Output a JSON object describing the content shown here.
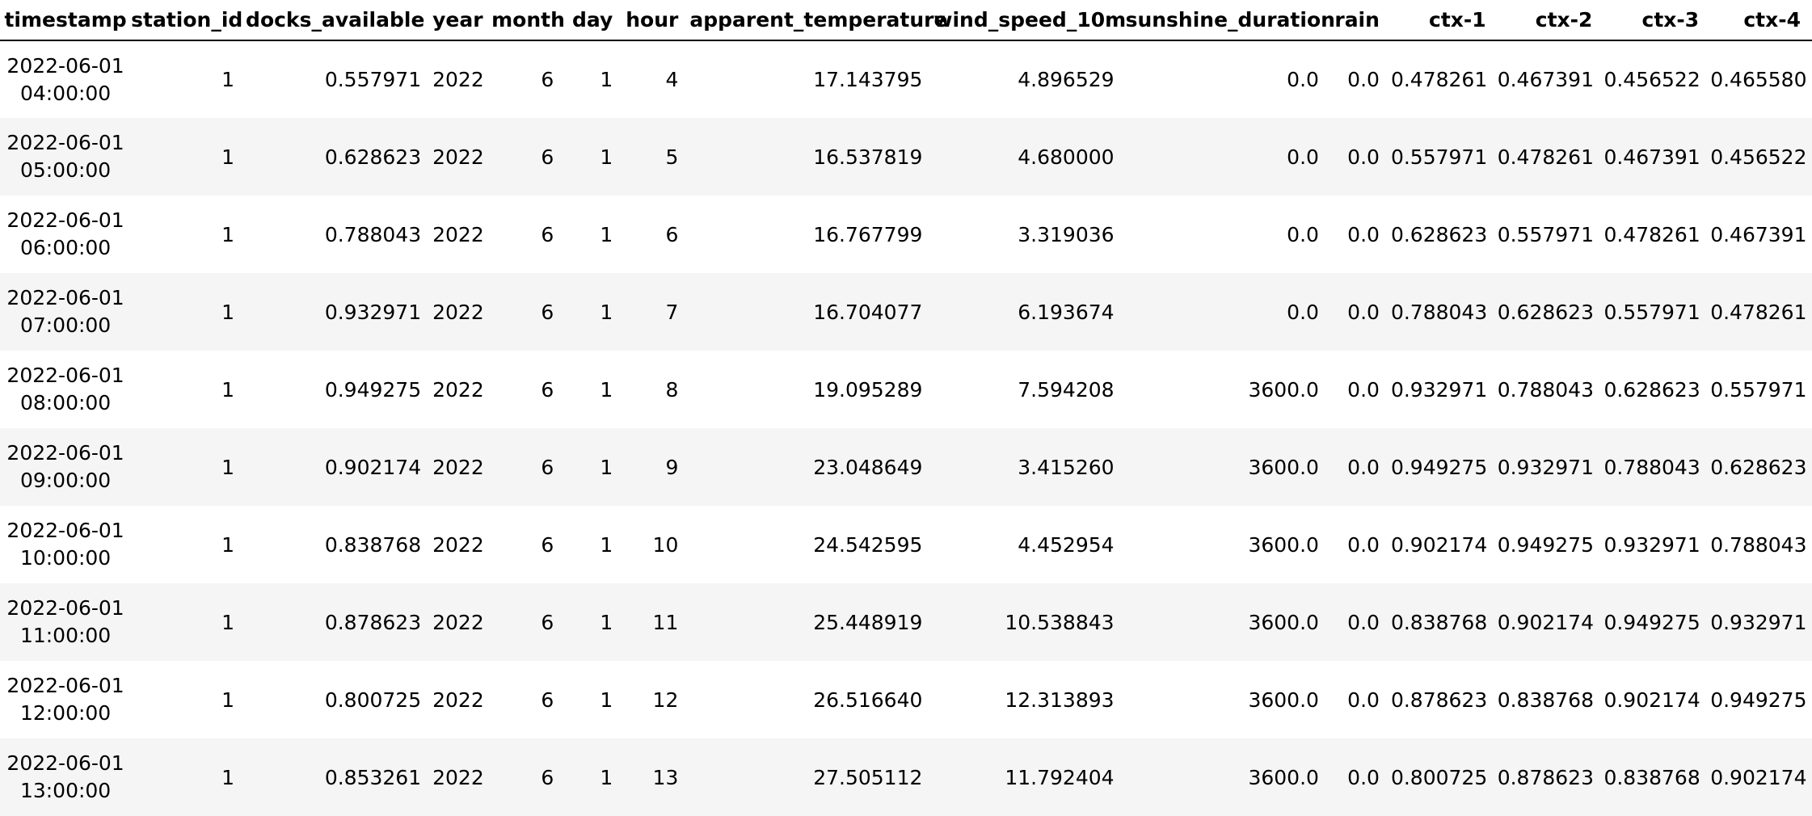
{
  "table": {
    "columns": [
      "timestamp",
      "station_id",
      "docks_available",
      "year",
      "month",
      "day",
      "hour",
      "apparent_temperature",
      "wind_speed_10m",
      "sunshine_duration",
      "rain",
      "ctx-1",
      "ctx-2",
      "ctx-3",
      "ctx-4"
    ],
    "rows": [
      {
        "timestamp": [
          "2022-06-01",
          "04:00:00"
        ],
        "cells": [
          "1",
          "0.557971",
          "2022",
          "6",
          "1",
          "4",
          "17.143795",
          "4.896529",
          "0.0",
          "0.0",
          "0.478261",
          "0.467391",
          "0.456522",
          "0.465580"
        ]
      },
      {
        "timestamp": [
          "2022-06-01",
          "05:00:00"
        ],
        "cells": [
          "1",
          "0.628623",
          "2022",
          "6",
          "1",
          "5",
          "16.537819",
          "4.680000",
          "0.0",
          "0.0",
          "0.557971",
          "0.478261",
          "0.467391",
          "0.456522"
        ]
      },
      {
        "timestamp": [
          "2022-06-01",
          "06:00:00"
        ],
        "cells": [
          "1",
          "0.788043",
          "2022",
          "6",
          "1",
          "6",
          "16.767799",
          "3.319036",
          "0.0",
          "0.0",
          "0.628623",
          "0.557971",
          "0.478261",
          "0.467391"
        ]
      },
      {
        "timestamp": [
          "2022-06-01",
          "07:00:00"
        ],
        "cells": [
          "1",
          "0.932971",
          "2022",
          "6",
          "1",
          "7",
          "16.704077",
          "6.193674",
          "0.0",
          "0.0",
          "0.788043",
          "0.628623",
          "0.557971",
          "0.478261"
        ]
      },
      {
        "timestamp": [
          "2022-06-01",
          "08:00:00"
        ],
        "cells": [
          "1",
          "0.949275",
          "2022",
          "6",
          "1",
          "8",
          "19.095289",
          "7.594208",
          "3600.0",
          "0.0",
          "0.932971",
          "0.788043",
          "0.628623",
          "0.557971"
        ]
      },
      {
        "timestamp": [
          "2022-06-01",
          "09:00:00"
        ],
        "cells": [
          "1",
          "0.902174",
          "2022",
          "6",
          "1",
          "9",
          "23.048649",
          "3.415260",
          "3600.0",
          "0.0",
          "0.949275",
          "0.932971",
          "0.788043",
          "0.628623"
        ]
      },
      {
        "timestamp": [
          "2022-06-01",
          "10:00:00"
        ],
        "cells": [
          "1",
          "0.838768",
          "2022",
          "6",
          "1",
          "10",
          "24.542595",
          "4.452954",
          "3600.0",
          "0.0",
          "0.902174",
          "0.949275",
          "0.932971",
          "0.788043"
        ]
      },
      {
        "timestamp": [
          "2022-06-01",
          "11:00:00"
        ],
        "cells": [
          "1",
          "0.878623",
          "2022",
          "6",
          "1",
          "11",
          "25.448919",
          "10.538843",
          "3600.0",
          "0.0",
          "0.838768",
          "0.902174",
          "0.949275",
          "0.932971"
        ]
      },
      {
        "timestamp": [
          "2022-06-01",
          "12:00:00"
        ],
        "cells": [
          "1",
          "0.800725",
          "2022",
          "6",
          "1",
          "12",
          "26.516640",
          "12.313893",
          "3600.0",
          "0.0",
          "0.878623",
          "0.838768",
          "0.902174",
          "0.949275"
        ]
      },
      {
        "timestamp": [
          "2022-06-01",
          "13:00:00"
        ],
        "cells": [
          "1",
          "0.853261",
          "2022",
          "6",
          "1",
          "13",
          "27.505112",
          "11.792404",
          "3600.0",
          "0.0",
          "0.800725",
          "0.878623",
          "0.838768",
          "0.902174"
        ]
      }
    ]
  },
  "colors": {
    "header_rule": "#000000",
    "row_stripe": "#f5f5f5",
    "text": "#000000"
  }
}
